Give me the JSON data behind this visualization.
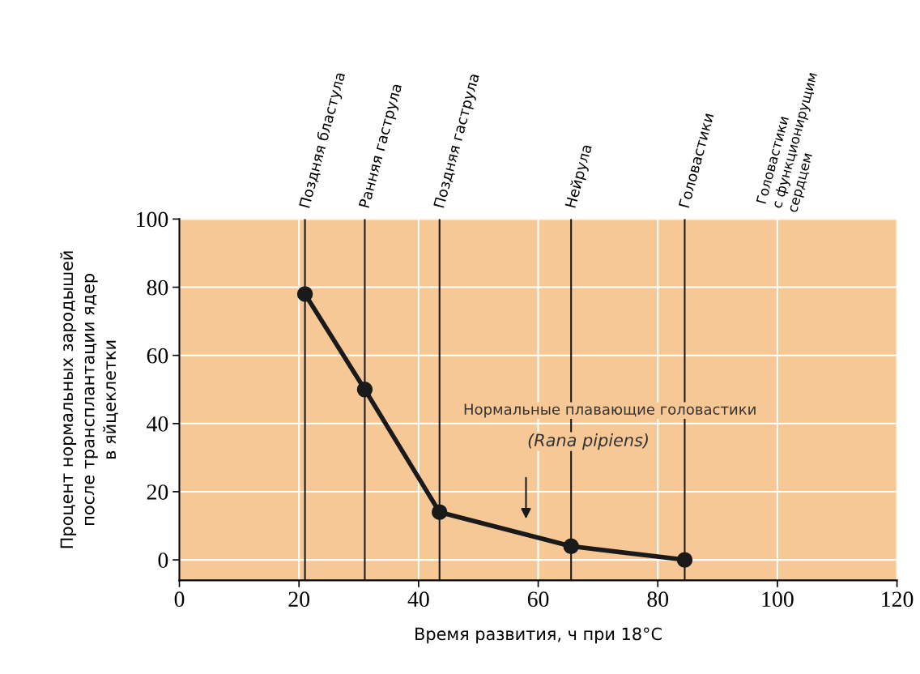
{
  "chart_data": {
    "type": "line",
    "xlabel": "Время развития, ч при 18°C",
    "ylabel": "Процент нормальных зародышей\nпосле трансплантации ядер\nв яйцеклетки",
    "x": [
      21,
      31,
      43.5,
      65.5,
      84.5
    ],
    "series": [
      {
        "color": "#1a1a1a",
        "values": [
          78,
          50,
          14,
          4,
          0
        ]
      }
    ],
    "marker": "circle",
    "line_style": "solid",
    "grid": true,
    "legend": false,
    "xlim": [
      0,
      120
    ],
    "xticks": [
      0,
      20,
      40,
      60,
      80,
      100,
      120
    ],
    "ylim": [
      -6,
      100
    ],
    "yticks": [
      0,
      20,
      40,
      60,
      80,
      100
    ],
    "ref_lines": [
      {
        "axis": "x",
        "value": 21,
        "label": "Поздняя бластула",
        "color": "#1a1a1a"
      },
      {
        "axis": "x",
        "value": 31,
        "label": "Ранняя гаструла",
        "color": "#1a1a1a"
      },
      {
        "axis": "x",
        "value": 43.5,
        "label": "Поздняя гаструла",
        "color": "#1a1a1a"
      },
      {
        "axis": "x",
        "value": 65.5,
        "label": "Нейрула",
        "color": "#1a1a1a"
      },
      {
        "axis": "x",
        "value": 84.5,
        "label": "Головастики",
        "color": "#1a1a1a"
      }
    ],
    "annotations": [
      "Головастики\nс функционирущим\nсердцем",
      "Нормальные плавающие головастики",
      "(Rana pipiens)"
    ]
  }
}
